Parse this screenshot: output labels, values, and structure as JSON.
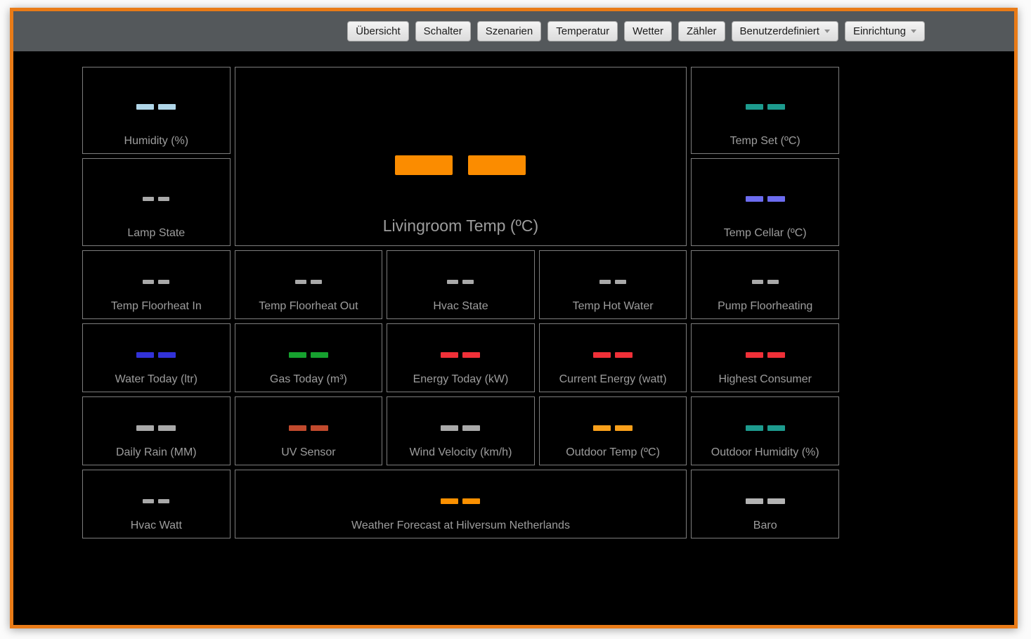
{
  "navbar": {
    "items": [
      {
        "label": "Übersicht",
        "dropdown": false
      },
      {
        "label": "Schalter",
        "dropdown": false
      },
      {
        "label": "Szenarien",
        "dropdown": false
      },
      {
        "label": "Temperatur",
        "dropdown": false
      },
      {
        "label": "Wetter",
        "dropdown": false
      },
      {
        "label": "Zähler",
        "dropdown": false
      },
      {
        "label": "Benutzerdefiniert",
        "dropdown": true
      },
      {
        "label": "Einrichtung",
        "dropdown": true
      }
    ]
  },
  "colors": {
    "frame_border": "#e97b17",
    "navbar_bg": "#54585b",
    "tile_border": "#7d7d7d",
    "label_text": "#9d9d9d",
    "page_bg": "#000000"
  },
  "tiles": [
    {
      "name": "humidity",
      "label": "Humidity (%)",
      "value": "--",
      "color": "#b0d6e8",
      "size": "md",
      "col": 1,
      "row": 1
    },
    {
      "name": "livingroom-temp",
      "label": "Livingroom Temp (ºC)",
      "value": "--",
      "color": "#fb8c00",
      "size": "lg",
      "col": 2,
      "row": 1,
      "colspan": 3,
      "rowspan": 2,
      "big": true
    },
    {
      "name": "temp-set",
      "label": "Temp Set (ºC)",
      "value": "--",
      "color": "#1d9b8e",
      "size": "md",
      "col": 5,
      "row": 1
    },
    {
      "name": "lamp-state",
      "label": "Lamp State",
      "value": "--",
      "color": "#a9a9a9",
      "size": "sm",
      "col": 1,
      "row": 2
    },
    {
      "name": "temp-cellar",
      "label": "Temp Cellar (ºC)",
      "value": "--",
      "color": "#6c6cf0",
      "size": "md",
      "col": 5,
      "row": 2
    },
    {
      "name": "temp-floorheat-in",
      "label": "Temp Floorheat In",
      "value": "--",
      "color": "#a9a9a9",
      "size": "sm",
      "col": 1,
      "row": 3
    },
    {
      "name": "temp-floorheat-out",
      "label": "Temp Floorheat Out",
      "value": "--",
      "color": "#a9a9a9",
      "size": "sm",
      "col": 2,
      "row": 3
    },
    {
      "name": "hvac-state",
      "label": "Hvac State",
      "value": "--",
      "color": "#a9a9a9",
      "size": "sm",
      "col": 3,
      "row": 3
    },
    {
      "name": "temp-hot-water",
      "label": "Temp Hot Water",
      "value": "--",
      "color": "#a9a9a9",
      "size": "sm",
      "col": 4,
      "row": 3
    },
    {
      "name": "pump-floorheating",
      "label": "Pump Floorheating",
      "value": "--",
      "color": "#a9a9a9",
      "size": "sm",
      "col": 5,
      "row": 3
    },
    {
      "name": "water-today",
      "label": "Water Today (ltr)",
      "value": "--",
      "color": "#3232d8",
      "size": "md",
      "col": 1,
      "row": 4
    },
    {
      "name": "gas-today",
      "label": "Gas Today (m³)",
      "value": "--",
      "color": "#16a12f",
      "size": "md",
      "col": 2,
      "row": 4
    },
    {
      "name": "energy-today",
      "label": "Energy Today (kW)",
      "value": "--",
      "color": "#f03038",
      "size": "md",
      "col": 3,
      "row": 4
    },
    {
      "name": "current-energy",
      "label": "Current Energy (watt)",
      "value": "--",
      "color": "#f03038",
      "size": "md",
      "col": 4,
      "row": 4
    },
    {
      "name": "highest-consumer",
      "label": "Highest Consumer",
      "value": "--",
      "color": "#f03038",
      "size": "md",
      "col": 5,
      "row": 4
    },
    {
      "name": "daily-rain",
      "label": "Daily Rain (MM)",
      "value": "--",
      "color": "#a9a9a9",
      "size": "md",
      "col": 1,
      "row": 5
    },
    {
      "name": "uv-sensor",
      "label": "UV Sensor",
      "value": "--",
      "color": "#c14a2d",
      "size": "md",
      "col": 2,
      "row": 5
    },
    {
      "name": "wind-velocity",
      "label": "Wind Velocity (km/h)",
      "value": "--",
      "color": "#a9a9a9",
      "size": "md",
      "col": 3,
      "row": 5
    },
    {
      "name": "outdoor-temp",
      "label": "Outdoor Temp (ºC)",
      "value": "--",
      "color": "#f9a01b",
      "size": "md",
      "col": 4,
      "row": 5
    },
    {
      "name": "outdoor-humidity",
      "label": "Outdoor Humidity (%)",
      "value": "--",
      "color": "#1d9b8e",
      "size": "md",
      "col": 5,
      "row": 5
    },
    {
      "name": "hvac-watt",
      "label": "Hvac Watt",
      "value": "--",
      "color": "#a9a9a9",
      "size": "sm",
      "col": 1,
      "row": 6
    },
    {
      "name": "weather-forecast",
      "label": "Weather Forecast at Hilversum Netherlands",
      "value": "--",
      "color": "#fb9000",
      "size": "md",
      "col": 2,
      "row": 6,
      "colspan": 3
    },
    {
      "name": "baro",
      "label": "Baro",
      "value": "--",
      "color": "#b3b3b3",
      "size": "md",
      "col": 5,
      "row": 6
    }
  ]
}
